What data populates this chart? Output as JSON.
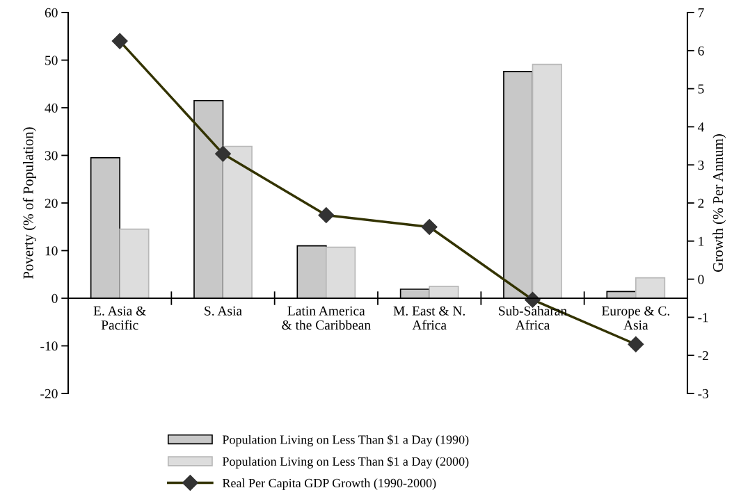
{
  "chart_data": {
    "type": "bar",
    "ylabel": "Poverty (% of Population)",
    "y2label": "Growth (% Per Annum)",
    "categories": [
      "E. Asia &\nPacific",
      "S. Asia",
      "Latin America\n& the Caribbean",
      "M. East & N.\nAfrica",
      "Sub-Saharan\nAfrica",
      "Europe & C.\nAsia"
    ],
    "series": [
      {
        "name": "Population Living on Less Than $1 a Day (1990)",
        "color": "#c8c8c8",
        "values": [
          29.5,
          41.5,
          11.0,
          1.9,
          47.6,
          1.4
        ]
      },
      {
        "name": "Population Living on Less Than $1 a Day (2000)",
        "color": "#dddddd",
        "values": [
          14.5,
          31.9,
          10.7,
          2.5,
          49.1,
          4.3
        ]
      },
      {
        "name": "Real Per Capita GDP Growth (1990-2000)",
        "type": "line",
        "axis": "y2",
        "color": "#333300",
        "marker": "diamond",
        "values": [
          6.25,
          3.29,
          1.68,
          1.37,
          -0.54,
          -1.71
        ]
      }
    ],
    "ylim": [
      -20,
      60
    ],
    "yticks": [
      -20,
      -10,
      0,
      10,
      20,
      30,
      40,
      50,
      60
    ],
    "y2lim": [
      -3,
      7
    ],
    "y2ticks": [
      -3,
      -2,
      -1,
      0,
      1,
      2,
      3,
      4,
      5,
      6,
      7
    ],
    "grid": false,
    "legend": "bottom"
  }
}
